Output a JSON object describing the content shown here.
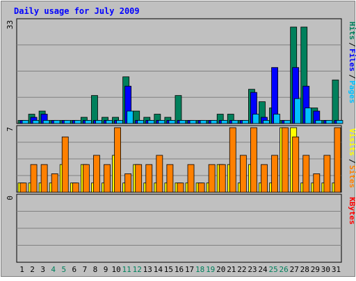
{
  "chart_data": {
    "type": "bar",
    "title": "Daily usage for July 2009",
    "categories": [
      "1",
      "2",
      "3",
      "4",
      "5",
      "6",
      "7",
      "8",
      "9",
      "10",
      "11",
      "12",
      "13",
      "14",
      "15",
      "16",
      "17",
      "18",
      "19",
      "20",
      "21",
      "22",
      "23",
      "24",
      "25",
      "26",
      "27",
      "28",
      "29",
      "30",
      "31"
    ],
    "weekend_days": [
      "4",
      "5",
      "11",
      "12",
      "18",
      "19",
      "25",
      "26"
    ],
    "panels": [
      {
        "name": "top",
        "ymax": 33,
        "ymax_label": "33",
        "side_labels": [
          "Hits",
          "Files",
          "Pages"
        ],
        "series": [
          {
            "name": "Hits",
            "color": "#00805c",
            "values": [
              1,
              3,
              4,
              1,
              1,
              1,
              2,
              9,
              2,
              2,
              15,
              4,
              2,
              3,
              2,
              9,
              1,
              1,
              1,
              3,
              3,
              1,
              11,
              7,
              5,
              1,
              31,
              31,
              5,
              1,
              14
            ]
          },
          {
            "name": "Files",
            "color": "#0000ff",
            "values": [
              1,
              2,
              3,
              1,
              1,
              1,
              1,
              1,
              1,
              1,
              12,
              1,
              1,
              1,
              1,
              1,
              1,
              1,
              1,
              1,
              1,
              1,
              10,
              2,
              18,
              1,
              18,
              12,
              4,
              1,
              1
            ]
          },
          {
            "name": "Pages",
            "color": "#00c0ff",
            "values": [
              1,
              1,
              1,
              1,
              1,
              1,
              1,
              1,
              1,
              1,
              4,
              1,
              1,
              1,
              1,
              1,
              1,
              1,
              1,
              1,
              1,
              1,
              3,
              1,
              3,
              1,
              8,
              5,
              1,
              1,
              1
            ]
          }
        ]
      },
      {
        "name": "middle",
        "ymax": 7,
        "ymax_label": "7",
        "side_labels": [
          "Visits",
          "Sites"
        ],
        "series": [
          {
            "name": "Visits",
            "color": "#ffff00",
            "values": [
              1,
              1,
              1,
              1,
              3,
              1,
              3,
              1,
              1,
              4,
              1,
              3,
              1,
              1,
              1,
              1,
              1,
              1,
              1,
              3,
              3,
              1,
              3,
              1,
              1,
              7,
              7,
              1,
              1,
              1,
              1
            ]
          },
          {
            "name": "Sites",
            "color": "#ff8000",
            "values": [
              1,
              3,
              3,
              2,
              6,
              1,
              3,
              4,
              3,
              7,
              2,
              3,
              3,
              4,
              3,
              1,
              3,
              1,
              3,
              3,
              7,
              4,
              7,
              3,
              4,
              7,
              6,
              4,
              2,
              4,
              7
            ]
          }
        ]
      },
      {
        "name": "bottom",
        "ymax": 0,
        "ymax_label": "0",
        "side_labels": [
          "KBytes"
        ],
        "series": [
          {
            "name": "KBytes",
            "color": "#ff0000",
            "values": [
              0,
              0,
              0,
              0,
              0,
              0,
              0,
              0,
              0,
              0,
              0,
              0,
              0,
              0,
              0,
              0,
              0,
              0,
              0,
              0,
              0,
              0,
              0,
              0,
              0,
              0,
              0,
              0,
              0,
              0,
              0
            ]
          }
        ]
      }
    ]
  },
  "colors": {
    "title": "#0000ff",
    "plot_bg": "#c0c0c0",
    "grid": "#808080",
    "weekday_label": "#000000",
    "weekend_label": "#00805c",
    "separator": "#c0c0c0"
  }
}
